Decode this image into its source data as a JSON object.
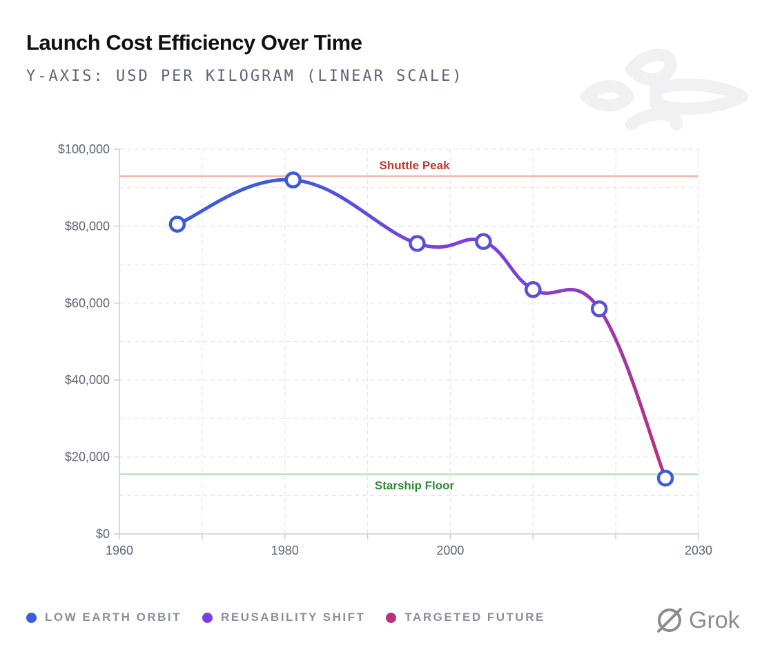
{
  "title": "Launch Cost Efficiency Over Time",
  "subtitle": "Y-AXIS: USD PER KILOGRAM (LINEAR SCALE)",
  "brand": "Grok",
  "colors": {
    "low_earth_orbit": "#3b5bdb",
    "reusability_shift": "#7b3fe0",
    "targeted_future": "#b83280",
    "shuttle_peak": "#f5b5ad",
    "shuttle_peak_text": "#c0392b",
    "starship_floor": "#b6e3b9",
    "starship_floor_text": "#2e8b3a",
    "grid": "#e3e6ea",
    "axis_text": "#5c6373"
  },
  "chart_data": {
    "type": "line",
    "title": "Launch Cost Efficiency Over Time",
    "ylabel": "USD per kilogram (linear scale)",
    "xlabel": "",
    "xlim": [
      1960,
      2030
    ],
    "ylim": [
      0,
      100000
    ],
    "x_ticks": [
      1960,
      1980,
      2000,
      2030
    ],
    "x_tick_labels": [
      "1960",
      "1980",
      "2000",
      "2030"
    ],
    "x_minor_grid": [
      1960,
      1970,
      1980,
      1990,
      2000,
      2010,
      2020,
      2030
    ],
    "y_ticks": [
      0,
      20000,
      40000,
      60000,
      80000,
      100000
    ],
    "y_tick_labels": [
      "$0",
      "$20,000",
      "$40,000",
      "$60,000",
      "$80,000",
      "$100,000"
    ],
    "y_minor_grid": [
      10000,
      30000,
      50000,
      70000,
      90000
    ],
    "points": [
      {
        "x": 1967,
        "y": 80500
      },
      {
        "x": 1981,
        "y": 92000
      },
      {
        "x": 1996,
        "y": 75500
      },
      {
        "x": 2004,
        "y": 76000
      },
      {
        "x": 2010,
        "y": 63500
      },
      {
        "x": 2018,
        "y": 58500
      },
      {
        "x": 2026,
        "y": 14500
      }
    ],
    "reference_lines": [
      {
        "name": "Shuttle Peak",
        "y": 93000
      },
      {
        "name": "Starship Floor",
        "y": 15500
      }
    ],
    "legend": [
      "LOW EARTH ORBIT",
      "REUSABILITY SHIFT",
      "TARGETED FUTURE"
    ]
  }
}
